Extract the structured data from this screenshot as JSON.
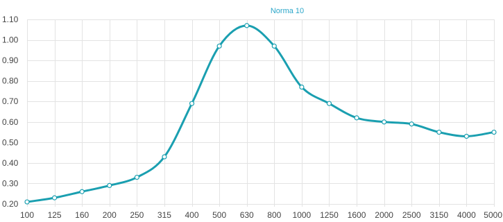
{
  "chart_data": {
    "type": "line",
    "title": "Norma 10",
    "xlabel": "",
    "ylabel": "",
    "categories": [
      "100",
      "125",
      "160",
      "200",
      "250",
      "315",
      "400",
      "500",
      "630",
      "800",
      "1000",
      "1250",
      "1600",
      "2000",
      "2500",
      "3150",
      "4000",
      "5000"
    ],
    "series": [
      {
        "values": [
          0.21,
          0.23,
          0.26,
          0.29,
          0.33,
          0.43,
          0.69,
          0.97,
          1.07,
          0.97,
          0.77,
          0.69,
          0.62,
          0.6,
          0.59,
          0.55,
          0.53,
          0.55
        ]
      }
    ],
    "ylim": [
      0.2,
      1.1
    ],
    "yticks": [
      "0.20",
      "0.30",
      "0.40",
      "0.50",
      "0.60",
      "0.70",
      "0.80",
      "0.90",
      "1.00",
      "1.10"
    ],
    "grid": true,
    "legend": "none",
    "colors": {
      "line": "#1a9fb0",
      "title": "#2aa6c9",
      "grid": "#e3e3e3"
    }
  }
}
